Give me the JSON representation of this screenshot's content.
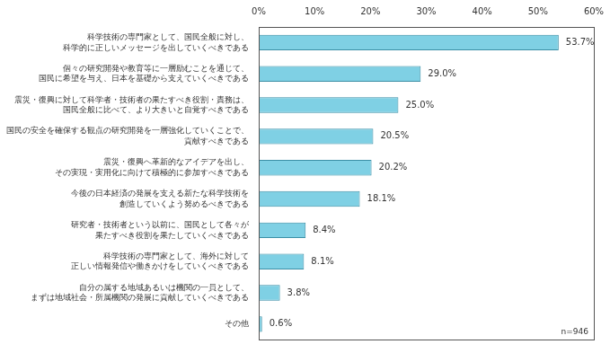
{
  "chart_data": {
    "type": "bar",
    "orientation": "horizontal",
    "categories": [
      "科学技術の専門家として、国民全般に対し、\n科学的に正しいメッセージを出していくべきである",
      "個々の研究開発や教育等に一層励むことを通じて、\n国民に希望を与え、日本を基礎から支えていくべきである",
      "震災・復興に対して科学者・技術者の果たすべき役割・責務は、\n国民全般に比べて、より大きいと自覚すべきである",
      "国民の安全を確保する観点の研究開発を一層強化していくことで、\n貢献すべきである",
      "震災・復興へ革新的なアイデアを出し、\nその実現・実用化に向けて積極的に参加すべきである",
      "今後の日本経済の発展を支える新たな科学技術を\n創造していくよう努めるべきである",
      "研究者・技術者という以前に、国民として各々が\n果たすべき役割を果たしていくべきである",
      "科学技術の専門家として、海外に対して\n正しい情報発信や働きかけをしていくべきである",
      "自分の属する地域あるいは機関の一員として、\nまずは地域社会・所属機関の発展に貢献していくべきである",
      "その他"
    ],
    "values": [
      53.7,
      29.0,
      25.0,
      20.5,
      20.2,
      18.1,
      8.4,
      8.1,
      3.8,
      0.6
    ],
    "value_labels": [
      "53.7%",
      "29.0%",
      "25.0%",
      "20.5%",
      "20.2%",
      "18.1%",
      "8.4%",
      "8.1%",
      "3.8%",
      "0.6%"
    ],
    "color": "#7fd0e4",
    "xlim": [
      0,
      60
    ],
    "xticks": [
      {
        "value": 0,
        "label": "0%"
      },
      {
        "value": 10,
        "label": "10%"
      },
      {
        "value": 20,
        "label": "20%"
      },
      {
        "value": 30,
        "label": "30%"
      },
      {
        "value": 40,
        "label": "40%"
      },
      {
        "value": 50,
        "label": "50%"
      },
      {
        "value": 60,
        "label": "60%"
      }
    ],
    "grid": false,
    "data_labels": true,
    "annotations": [
      "n=946"
    ]
  }
}
